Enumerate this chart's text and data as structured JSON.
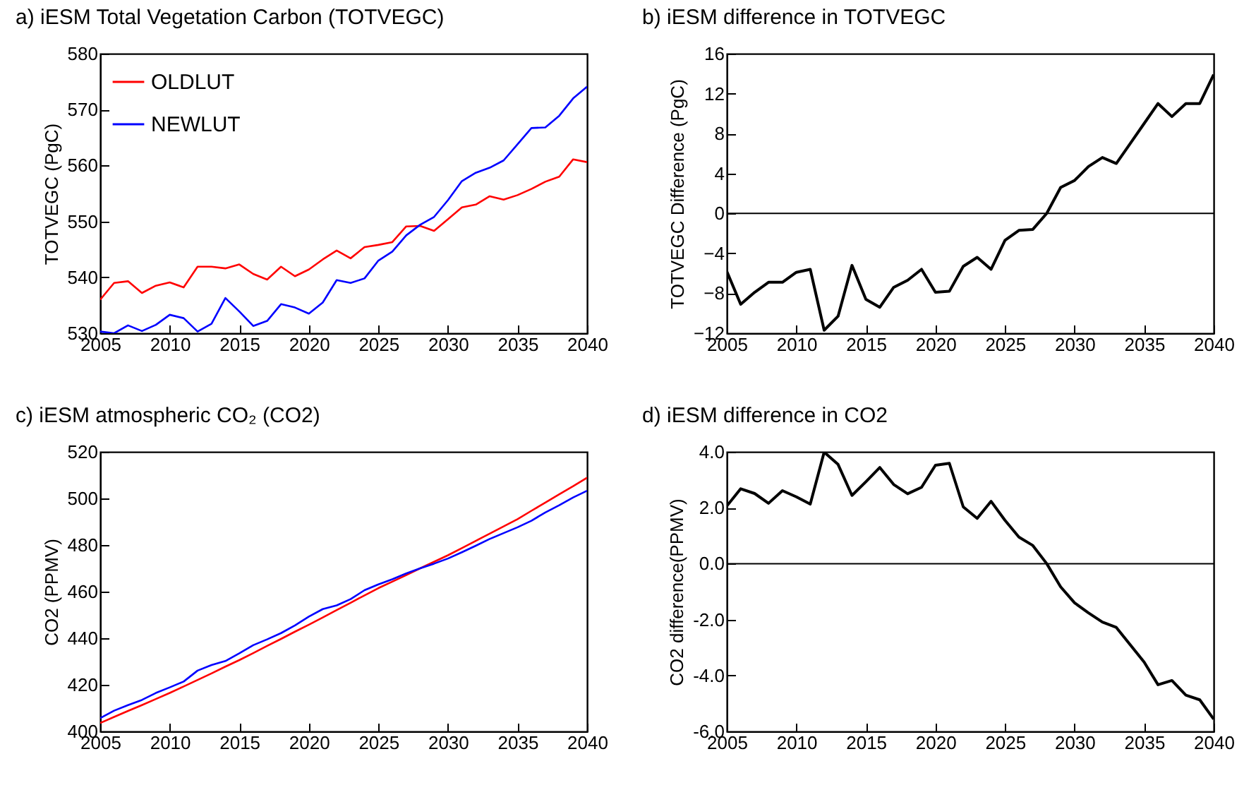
{
  "chart_data": [
    {
      "type": "line",
      "title": "a) iESM Total Vegetation Carbon (TOTVEGC)",
      "ylabel": "TOTVEGC (PgC)",
      "x": [
        2005,
        2006,
        2007,
        2008,
        2009,
        2010,
        2011,
        2012,
        2013,
        2014,
        2015,
        2016,
        2017,
        2018,
        2019,
        2020,
        2021,
        2022,
        2023,
        2024,
        2025,
        2026,
        2027,
        2028,
        2029,
        2030,
        2031,
        2032,
        2033,
        2034,
        2035,
        2036,
        2037,
        2038,
        2039,
        2040
      ],
      "series": [
        {
          "name": "OLDLUT",
          "color": "#ff0000",
          "values": [
            536.0,
            539.0,
            539.3,
            537.2,
            538.5,
            539.1,
            538.2,
            541.9,
            541.9,
            541.6,
            542.3,
            540.6,
            539.6,
            541.9,
            540.2,
            541.4,
            543.2,
            544.8,
            543.4,
            545.4,
            545.8,
            546.3,
            549.1,
            549.2,
            548.3,
            550.4,
            552.5,
            553.0,
            554.5,
            553.9,
            554.7,
            555.8,
            557.1,
            558.0,
            561.1,
            560.6
          ]
        },
        {
          "name": "NEWLUT",
          "color": "#0000ff",
          "values": [
            530.3,
            530.0,
            531.4,
            530.4,
            531.5,
            533.3,
            532.7,
            530.3,
            531.7,
            536.3,
            533.9,
            531.3,
            532.2,
            535.2,
            534.6,
            533.5,
            535.5,
            539.5,
            539.0,
            539.8,
            543.0,
            544.6,
            547.5,
            549.4,
            550.8,
            553.8,
            557.2,
            558.7,
            559.6,
            560.9,
            563.8,
            566.7,
            566.8,
            568.9,
            572.0,
            574.1
          ]
        }
      ],
      "xlim": [
        2005,
        2040
      ],
      "xticks": [
        2005,
        2010,
        2015,
        2020,
        2025,
        2030,
        2035,
        2040
      ],
      "ylim": [
        530,
        580
      ],
      "yticks": [
        530,
        540,
        550,
        560,
        570,
        580
      ],
      "legend": "top left"
    },
    {
      "type": "line",
      "title": "b) iESM difference in TOTVEGC",
      "ylabel": "TOTVEGC Difference (PgC)",
      "x": [
        2005,
        2006,
        2007,
        2008,
        2009,
        2010,
        2011,
        2012,
        2013,
        2014,
        2015,
        2016,
        2017,
        2018,
        2019,
        2020,
        2021,
        2022,
        2023,
        2024,
        2025,
        2026,
        2027,
        2028,
        2029,
        2030,
        2031,
        2032,
        2033,
        2034,
        2035,
        2036,
        2037,
        2038,
        2039,
        2040
      ],
      "series": [
        {
          "color": "#000000",
          "values": [
            -5.8,
            -9.1,
            -7.9,
            -6.9,
            -6.9,
            -5.9,
            -5.6,
            -11.7,
            -10.3,
            -5.2,
            -8.6,
            -9.4,
            -7.4,
            -6.7,
            -5.6,
            -7.9,
            -7.8,
            -5.3,
            -4.4,
            -5.6,
            -2.7,
            -1.7,
            -1.6,
            0.0,
            2.6,
            3.3,
            4.7,
            5.6,
            5.0,
            7.0,
            9.0,
            11.0,
            9.7,
            11.0,
            11.0,
            13.9
          ]
        }
      ],
      "xlim": [
        2005,
        2040
      ],
      "xticks": [
        2005,
        2010,
        2015,
        2020,
        2025,
        2030,
        2035,
        2040
      ],
      "ylim": [
        -12,
        16
      ],
      "yticks": [
        -12,
        -8,
        -4,
        0,
        4,
        8,
        12,
        16
      ],
      "ref_lines": [
        {
          "axis": "y",
          "value": 0,
          "color": "#000000"
        }
      ]
    },
    {
      "type": "line",
      "title": "c) iESM atmospheric CO₂ (CO2)",
      "ylabel": "CO2 (PPMV)",
      "x": [
        2005,
        2006,
        2007,
        2008,
        2009,
        2010,
        2011,
        2012,
        2013,
        2014,
        2015,
        2016,
        2017,
        2018,
        2019,
        2020,
        2021,
        2022,
        2023,
        2024,
        2025,
        2026,
        2027,
        2028,
        2029,
        2030,
        2031,
        2032,
        2033,
        2034,
        2035,
        2036,
        2037,
        2038,
        2039,
        2040
      ],
      "series": [
        {
          "name": "OLDLUT",
          "color": "#ff0000",
          "values": [
            403.6,
            406.2,
            408.8,
            411.3,
            413.9,
            416.5,
            419.3,
            422.1,
            424.9,
            427.8,
            430.6,
            433.6,
            436.7,
            439.7,
            442.8,
            445.8,
            448.9,
            452.1,
            455.2,
            458.4,
            461.5,
            464.3,
            467.1,
            470.0,
            472.8,
            475.6,
            478.7,
            481.8,
            484.9,
            488.0,
            491.1,
            494.7,
            498.2,
            501.8,
            505.3,
            508.9
          ]
        },
        {
          "name": "NEWLUT",
          "color": "#0000ff",
          "values": [
            405.7,
            408.9,
            411.3,
            413.5,
            416.5,
            418.9,
            421.4,
            426.1,
            428.5,
            430.2,
            433.5,
            437.0,
            439.5,
            442.2,
            445.5,
            449.3,
            452.5,
            454.1,
            456.8,
            460.6,
            463.1,
            465.3,
            467.8,
            470.0,
            472.0,
            474.2,
            476.9,
            479.7,
            482.6,
            485.1,
            487.6,
            490.4,
            494.0,
            497.1,
            500.4,
            503.3
          ]
        }
      ],
      "xlim": [
        2005,
        2040
      ],
      "xticks": [
        2005,
        2010,
        2015,
        2020,
        2025,
        2030,
        2035,
        2040
      ],
      "ylim": [
        400,
        520
      ],
      "yticks": [
        400,
        420,
        440,
        460,
        480,
        500,
        520
      ],
      "legend": "top left"
    },
    {
      "type": "line",
      "title": "d) iESM difference in CO2",
      "ylabel": "CO2 difference(PPMV)",
      "x": [
        2005,
        2006,
        2007,
        2008,
        2009,
        2010,
        2011,
        2012,
        2013,
        2014,
        2015,
        2016,
        2017,
        2018,
        2019,
        2020,
        2021,
        2022,
        2023,
        2024,
        2025,
        2026,
        2027,
        2028,
        2029,
        2030,
        2031,
        2032,
        2033,
        2034,
        2035,
        2036,
        2037,
        2038,
        2039,
        2040
      ],
      "series": [
        {
          "color": "#000000",
          "values": [
            2.06,
            2.68,
            2.51,
            2.16,
            2.61,
            2.39,
            2.13,
            3.99,
            3.55,
            2.44,
            2.93,
            3.44,
            2.83,
            2.5,
            2.73,
            3.52,
            3.59,
            2.03,
            1.62,
            2.23,
            1.55,
            0.95,
            0.65,
            0.0,
            -0.83,
            -1.4,
            -1.76,
            -2.09,
            -2.28,
            -2.9,
            -3.52,
            -4.33,
            -4.18,
            -4.7,
            -4.87,
            -5.56
          ]
        }
      ],
      "xlim": [
        2005,
        2040
      ],
      "xticks": [
        2005,
        2010,
        2015,
        2020,
        2025,
        2030,
        2035,
        2040
      ],
      "ylim": [
        -6,
        4
      ],
      "yticks": [
        {
          "value": -6,
          "label": "-6.0"
        },
        {
          "value": -4,
          "label": "-4.0"
        },
        {
          "value": -2,
          "label": "-2.0"
        },
        {
          "value": 0,
          "label": "0.0"
        },
        {
          "value": 2,
          "label": "2.0"
        },
        {
          "value": 4,
          "label": "4.0"
        }
      ],
      "ref_lines": [
        {
          "axis": "y",
          "value": 0,
          "color": "#000000"
        }
      ]
    }
  ]
}
